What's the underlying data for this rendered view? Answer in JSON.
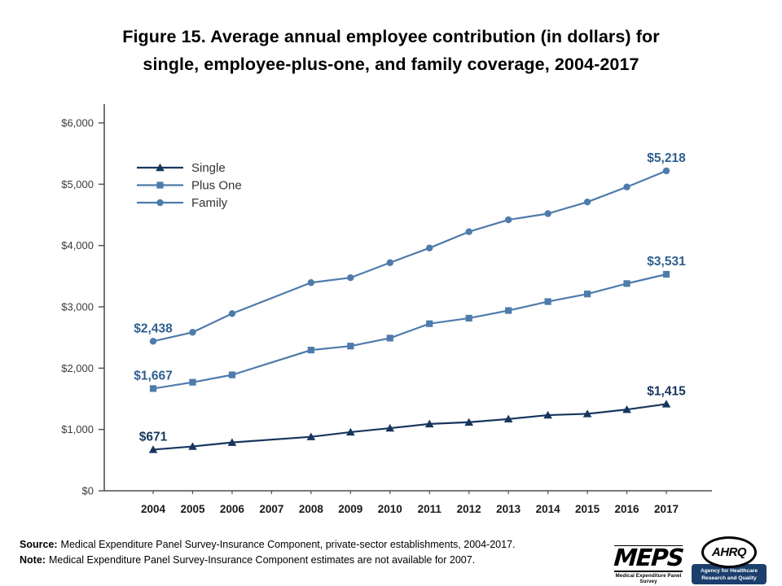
{
  "title": {
    "lines": [
      "Figure 15. Average annual employee contribution (in dollars) for",
      "single, employee-plus-one, and family coverage, 2004-2017"
    ]
  },
  "chart_data": {
    "type": "line",
    "title": "Figure 15. Average annual employee contribution (in dollars) for single, employee-plus-one, and family coverage, 2004-2017",
    "xlabel": "",
    "ylabel": "",
    "ylim": [
      0,
      6000
    ],
    "grid": false,
    "legend_position": "upper-left",
    "x_labels": [
      "2004",
      "2005",
      "2006",
      "2007",
      "2008",
      "2009",
      "2010",
      "2011",
      "2012",
      "2013",
      "2014",
      "2015",
      "2016",
      "2017"
    ],
    "y_ticks": [
      {
        "value": 0,
        "label": "$0"
      },
      {
        "value": 1000,
        "label": "$1,000"
      },
      {
        "value": 2000,
        "label": "$2,000"
      },
      {
        "value": 3000,
        "label": "$3,000"
      },
      {
        "value": 4000,
        "label": "$4,000"
      },
      {
        "value": 5000,
        "label": "$5,000"
      },
      {
        "value": 6000,
        "label": "$6,000"
      }
    ],
    "series": [
      {
        "name": "Single",
        "marker": "triangle",
        "color": "#17365d",
        "label_color": "#17365d",
        "first_label": "$671",
        "last_label": "$1,415",
        "values": [
          671,
          723,
          788,
          null,
          880,
          957,
          1021,
          1090,
          1118,
          1170,
          1234,
          1255,
          1325,
          1415
        ]
      },
      {
        "name": "Plus One",
        "marker": "square",
        "color": "#4e7bab",
        "label_color": "#2f5f8f",
        "first_label": "$1,667",
        "last_label": "$3,531",
        "values": [
          1667,
          1770,
          1890,
          null,
          2295,
          2360,
          2490,
          2725,
          2815,
          2940,
          3085,
          3210,
          3380,
          3531
        ]
      },
      {
        "name": "Family",
        "marker": "circle",
        "color": "#4e7bab",
        "label_color": "#2f5f8f",
        "first_label": "$2,438",
        "last_label": "$5,218",
        "values": [
          2438,
          2585,
          2890,
          null,
          3395,
          3475,
          3720,
          3960,
          4225,
          4420,
          4520,
          4710,
          4955,
          5218
        ]
      }
    ]
  },
  "footer": {
    "source_label": "Source:",
    "source_text": "Medical Expenditure Panel Survey-Insurance Component, private-sector establishments, 2004-2017.",
    "note_label": "Note:",
    "note_text": "Medical Expenditure Panel Survey-Insurance Component estimates are not available for 2007."
  },
  "logos": {
    "meps_word": "MEPS",
    "meps_sub": "Medical Expenditure Panel Survey",
    "ahrq_word": "AHRQ",
    "ahrq_sub": "Agency for Healthcare Research and Quality"
  }
}
